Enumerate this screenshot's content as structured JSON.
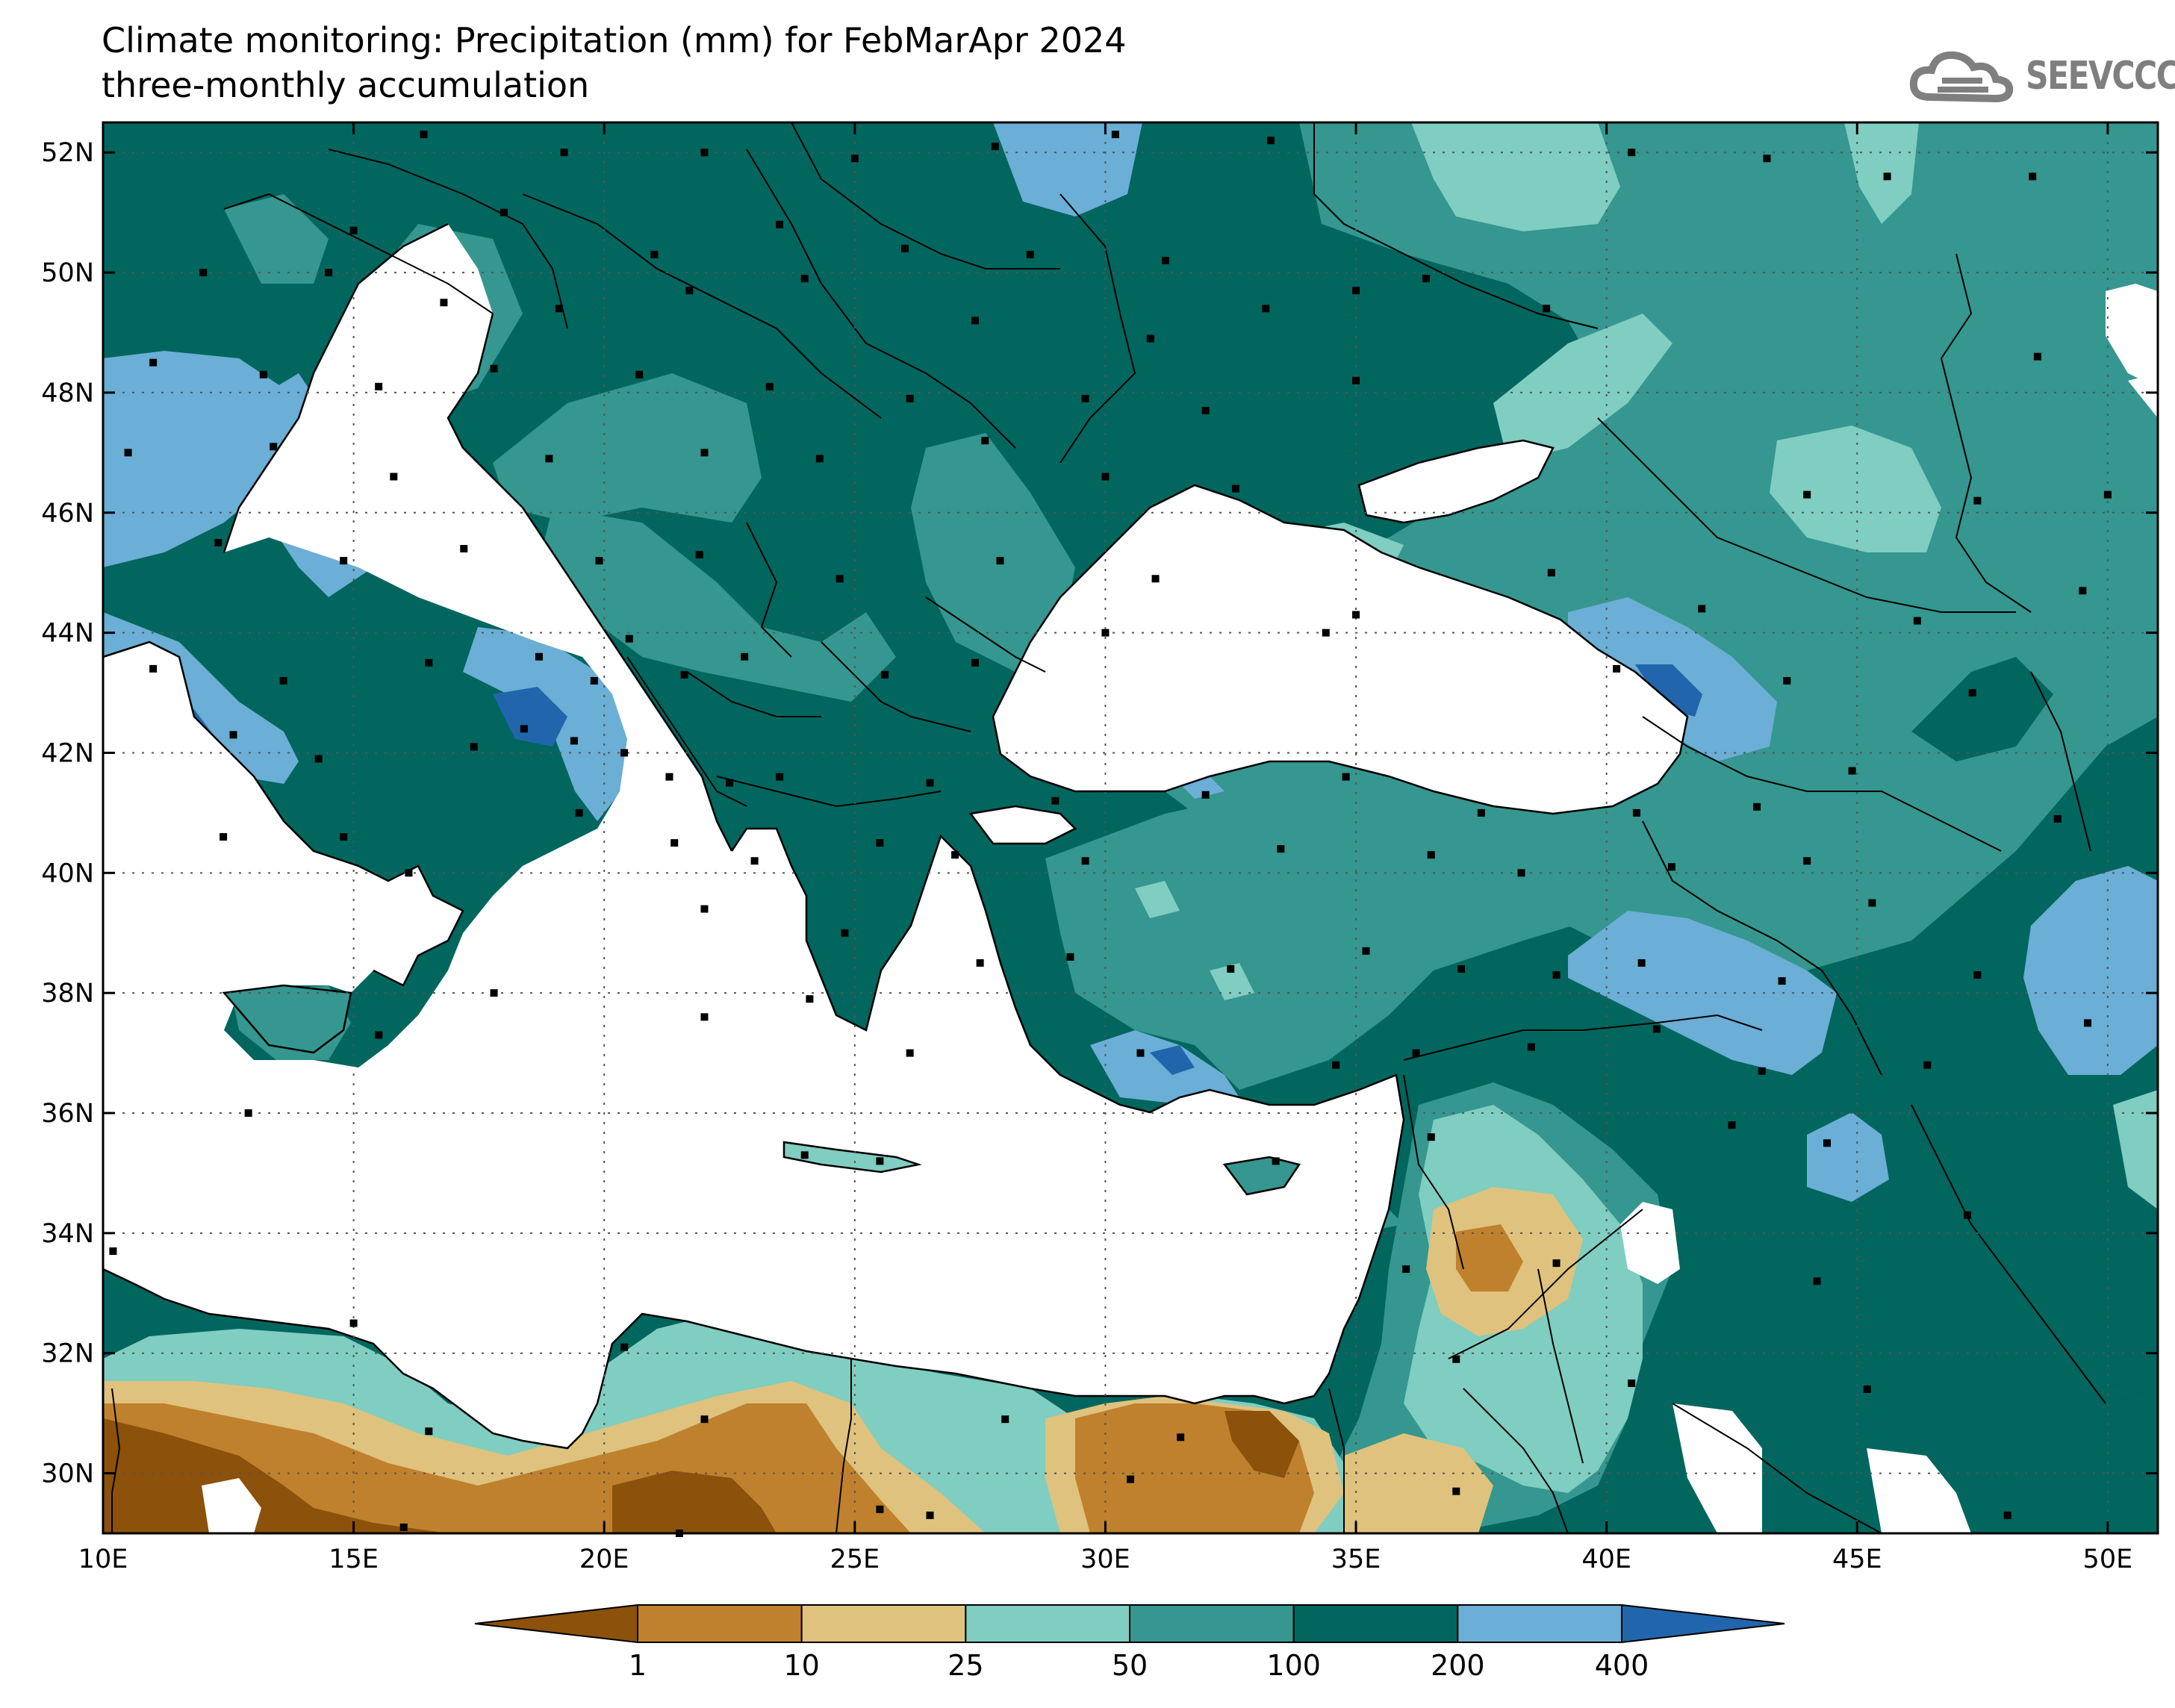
{
  "title": "Climate monitoring: Precipitation (mm) for FebMarApr 2024",
  "subtitle": "three-monthly accumulation",
  "logo": {
    "text": "SEEVCCC",
    "icon": "cloud-icon"
  },
  "map": {
    "lon_range": [
      10,
      51
    ],
    "lat_range": [
      29,
      52.5
    ],
    "lon_ticks": [
      "10E",
      "15E",
      "20E",
      "25E",
      "30E",
      "35E",
      "40E",
      "45E",
      "50E"
    ],
    "lat_ticks": [
      "30N",
      "32N",
      "34N",
      "36N",
      "38N",
      "40N",
      "42N",
      "44N",
      "46N",
      "48N",
      "50N",
      "52N"
    ],
    "grid": true
  },
  "colorbar": {
    "labels": [
      "1",
      "10",
      "25",
      "50",
      "100",
      "200",
      "400"
    ],
    "colors": [
      "#8c510a",
      "#bf812d",
      "#dfc27d",
      "#80cdc1",
      "#35978f",
      "#01665e",
      "#6baed6",
      "#2166ac"
    ]
  }
}
